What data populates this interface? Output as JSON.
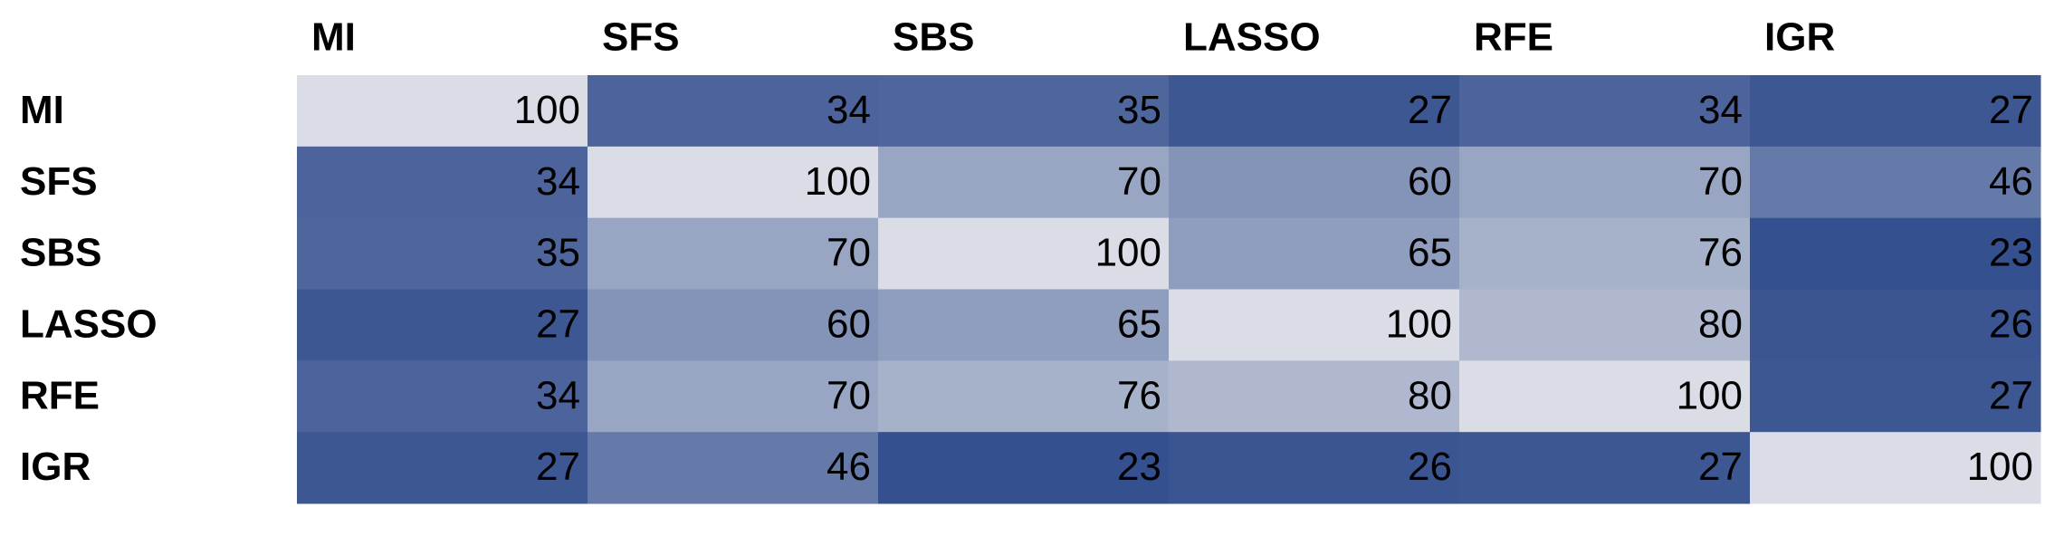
{
  "chart_data": {
    "type": "heatmap",
    "x_categories": [
      "MI",
      "SFS",
      "SBS",
      "LASSO",
      "RFE",
      "IGR"
    ],
    "y_categories": [
      "MI",
      "SFS",
      "SBS",
      "LASSO",
      "RFE",
      "IGR"
    ],
    "values": [
      [
        100,
        34,
        35,
        27,
        34,
        27
      ],
      [
        34,
        100,
        70,
        60,
        70,
        46
      ],
      [
        35,
        70,
        100,
        65,
        76,
        23
      ],
      [
        27,
        60,
        65,
        100,
        80,
        26
      ],
      [
        34,
        70,
        76,
        80,
        100,
        27
      ],
      [
        27,
        46,
        23,
        26,
        27,
        100
      ]
    ],
    "colormap": [
      "#34508f",
      "#dadde5"
    ]
  }
}
